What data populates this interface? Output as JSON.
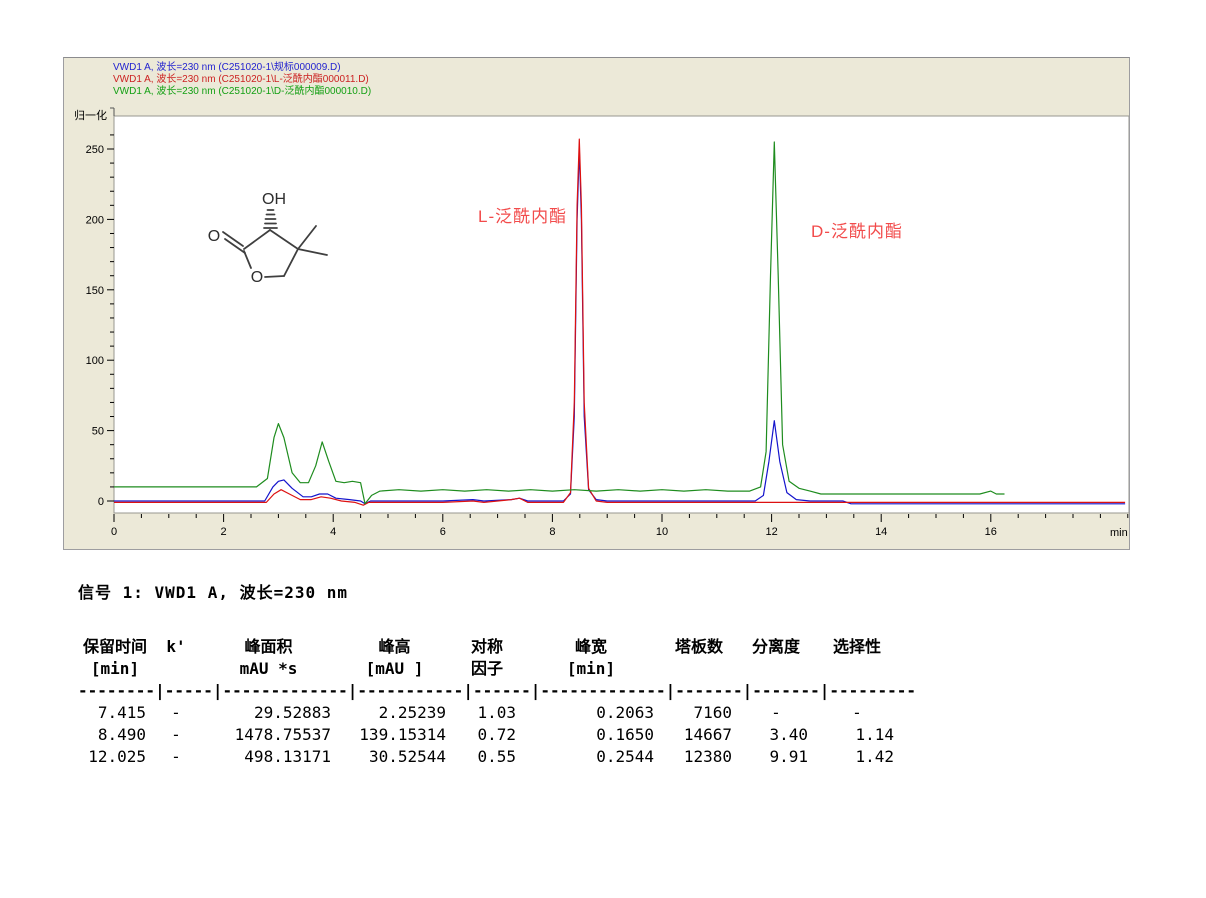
{
  "panel": {
    "background": "#ece9d8"
  },
  "legend": [
    {
      "label": "VWD1 A, 波长=230 nm (C251020-1\\规标000009.D)",
      "color": "#2323cf"
    },
    {
      "label": "VWD1 A, 波长=230 nm (C251020-1\\L-泛酰内酯000011.D)",
      "color": "#cc2222"
    },
    {
      "label": "VWD1 A, 波长=230 nm (C251020-1\\D-泛酰内酯000010.D)",
      "color": "#14a014"
    }
  ],
  "chart_data": {
    "type": "line",
    "title": "",
    "ylabel": "归一化",
    "x_unit": "min",
    "xlim": [
      0,
      18.5
    ],
    "ylim": [
      -10,
      280
    ],
    "x_major_ticks": [
      0,
      2,
      4,
      6,
      8,
      10,
      12,
      14,
      16
    ],
    "y_major_ticks": [
      0,
      50,
      100,
      150,
      200,
      250
    ],
    "grid": false,
    "legend_position": "top-left",
    "peak_annotations": [
      {
        "text": "L-泛酰内酯",
        "t": 8.49,
        "color": "#f24b4b"
      },
      {
        "text": "D-泛酰内酯",
        "t": 12.05,
        "color": "#f24b4b"
      }
    ],
    "series": [
      {
        "id": "trace-blue",
        "name": "规标000009.D",
        "color": "#1414cc",
        "points": [
          [
            0,
            0
          ],
          [
            1,
            0
          ],
          [
            2,
            0
          ],
          [
            2.75,
            0
          ],
          [
            2.9,
            10
          ],
          [
            3.0,
            14
          ],
          [
            3.1,
            15
          ],
          [
            3.25,
            9
          ],
          [
            3.45,
            3
          ],
          [
            3.6,
            3
          ],
          [
            3.75,
            5
          ],
          [
            3.9,
            5
          ],
          [
            4.05,
            2
          ],
          [
            4.3,
            1
          ],
          [
            4.5,
            0
          ],
          [
            4.58,
            -2
          ],
          [
            4.68,
            0
          ],
          [
            5,
            0
          ],
          [
            5.5,
            0
          ],
          [
            6,
            0
          ],
          [
            6.55,
            1
          ],
          [
            6.75,
            0
          ],
          [
            7.25,
            1
          ],
          [
            7.4,
            2
          ],
          [
            7.55,
            0
          ],
          [
            8.2,
            0
          ],
          [
            8.33,
            5
          ],
          [
            8.4,
            60
          ],
          [
            8.45,
            200
          ],
          [
            8.49,
            250
          ],
          [
            8.53,
            200
          ],
          [
            8.58,
            60
          ],
          [
            8.66,
            8
          ],
          [
            8.8,
            1
          ],
          [
            9,
            0
          ],
          [
            10,
            0
          ],
          [
            11,
            0
          ],
          [
            11.7,
            0
          ],
          [
            11.85,
            4
          ],
          [
            11.95,
            28
          ],
          [
            12.05,
            57
          ],
          [
            12.15,
            28
          ],
          [
            12.28,
            6
          ],
          [
            12.45,
            1
          ],
          [
            12.7,
            0
          ],
          [
            13.3,
            0
          ],
          [
            13.45,
            -2
          ],
          [
            14,
            -2
          ],
          [
            15,
            -2
          ],
          [
            16,
            -2
          ],
          [
            17,
            -2
          ],
          [
            18.45,
            -2
          ]
        ]
      },
      {
        "id": "trace-red",
        "name": "L-泛酰内酯000011.D",
        "color": "#dd1111",
        "points": [
          [
            0,
            -1
          ],
          [
            1,
            -1
          ],
          [
            2,
            -1
          ],
          [
            2.78,
            -1
          ],
          [
            2.92,
            5
          ],
          [
            3.05,
            8
          ],
          [
            3.2,
            5
          ],
          [
            3.4,
            1
          ],
          [
            3.6,
            1
          ],
          [
            3.78,
            3
          ],
          [
            3.95,
            2
          ],
          [
            4.15,
            0
          ],
          [
            4.4,
            -1
          ],
          [
            4.55,
            -3
          ],
          [
            4.65,
            -1
          ],
          [
            5,
            -1
          ],
          [
            6,
            -1
          ],
          [
            6.55,
            0
          ],
          [
            6.75,
            -1
          ],
          [
            7.25,
            1
          ],
          [
            7.4,
            2
          ],
          [
            7.55,
            -1
          ],
          [
            8.2,
            -1
          ],
          [
            8.33,
            6
          ],
          [
            8.4,
            70
          ],
          [
            8.45,
            210
          ],
          [
            8.49,
            257
          ],
          [
            8.53,
            210
          ],
          [
            8.58,
            70
          ],
          [
            8.66,
            9
          ],
          [
            8.8,
            0
          ],
          [
            9,
            -1
          ],
          [
            10,
            -1
          ],
          [
            11,
            -1
          ],
          [
            12,
            -1
          ],
          [
            13,
            -1
          ],
          [
            14,
            -1
          ],
          [
            15,
            -1
          ],
          [
            16,
            -1
          ],
          [
            17,
            -1
          ],
          [
            18.45,
            -1
          ]
        ]
      },
      {
        "id": "trace-green",
        "name": "D-泛酰内酯000010.D",
        "color": "#1e8c1e",
        "points": [
          [
            0,
            10
          ],
          [
            0.5,
            10
          ],
          [
            1,
            10
          ],
          [
            1.5,
            10
          ],
          [
            2,
            10
          ],
          [
            2.6,
            10
          ],
          [
            2.8,
            16
          ],
          [
            2.92,
            45
          ],
          [
            3.0,
            55
          ],
          [
            3.1,
            45
          ],
          [
            3.25,
            20
          ],
          [
            3.4,
            13
          ],
          [
            3.55,
            13
          ],
          [
            3.68,
            25
          ],
          [
            3.8,
            42
          ],
          [
            3.92,
            28
          ],
          [
            4.05,
            14
          ],
          [
            4.2,
            13
          ],
          [
            4.35,
            14
          ],
          [
            4.5,
            13
          ],
          [
            4.58,
            -2
          ],
          [
            4.7,
            4
          ],
          [
            4.85,
            7
          ],
          [
            5.2,
            8
          ],
          [
            5.6,
            7
          ],
          [
            6,
            8
          ],
          [
            6.4,
            7
          ],
          [
            6.8,
            8
          ],
          [
            7.2,
            7
          ],
          [
            7.6,
            8
          ],
          [
            8,
            7
          ],
          [
            8.4,
            8
          ],
          [
            8.8,
            7
          ],
          [
            9.2,
            8
          ],
          [
            9.6,
            7
          ],
          [
            10,
            8
          ],
          [
            10.4,
            7
          ],
          [
            10.8,
            8
          ],
          [
            11.2,
            7
          ],
          [
            11.6,
            7
          ],
          [
            11.8,
            10
          ],
          [
            11.9,
            35
          ],
          [
            11.98,
            160
          ],
          [
            12.05,
            255
          ],
          [
            12.12,
            160
          ],
          [
            12.2,
            40
          ],
          [
            12.32,
            14
          ],
          [
            12.5,
            9
          ],
          [
            12.7,
            7
          ],
          [
            12.9,
            5
          ],
          [
            13.3,
            5
          ],
          [
            13.8,
            5
          ],
          [
            14.3,
            5
          ],
          [
            14.8,
            5
          ],
          [
            15.3,
            5
          ],
          [
            15.8,
            5
          ],
          [
            16.0,
            7
          ],
          [
            16.1,
            5
          ],
          [
            16.25,
            5
          ]
        ]
      }
    ]
  },
  "molecule": {
    "name": "pantolactone",
    "hydroxyl_label": "OH",
    "carbonyl_oxygen_label": "O",
    "ring_oxygen_label": "O"
  },
  "signal_title": "信号 1: VWD1 A, 波长=230 nm",
  "table": {
    "headers": [
      "保留时间",
      "k'",
      "峰面积",
      "峰高",
      "对称",
      "峰宽",
      "塔板数",
      "分离度",
      "选择性"
    ],
    "units": [
      "[min]",
      "",
      "mAU   *s",
      "[mAU   ]",
      "因子",
      "[min]",
      "",
      "",
      ""
    ],
    "separator": "--------|-----|-------------|-----------|------|-------------|-------|-------|---------",
    "rows": [
      [
        "7.415",
        "-",
        "29.52883",
        "2.25239",
        "1.03",
        "0.2063",
        "7160",
        "-",
        "-"
      ],
      [
        "8.490",
        "-",
        "1478.75537",
        "139.15314",
        "0.72",
        "0.1650",
        "14667",
        "3.40",
        "1.14"
      ],
      [
        "12.025",
        "-",
        "498.13171",
        "30.52544",
        "0.55",
        "0.2544",
        "12380",
        "9.91",
        "1.42"
      ]
    ]
  }
}
